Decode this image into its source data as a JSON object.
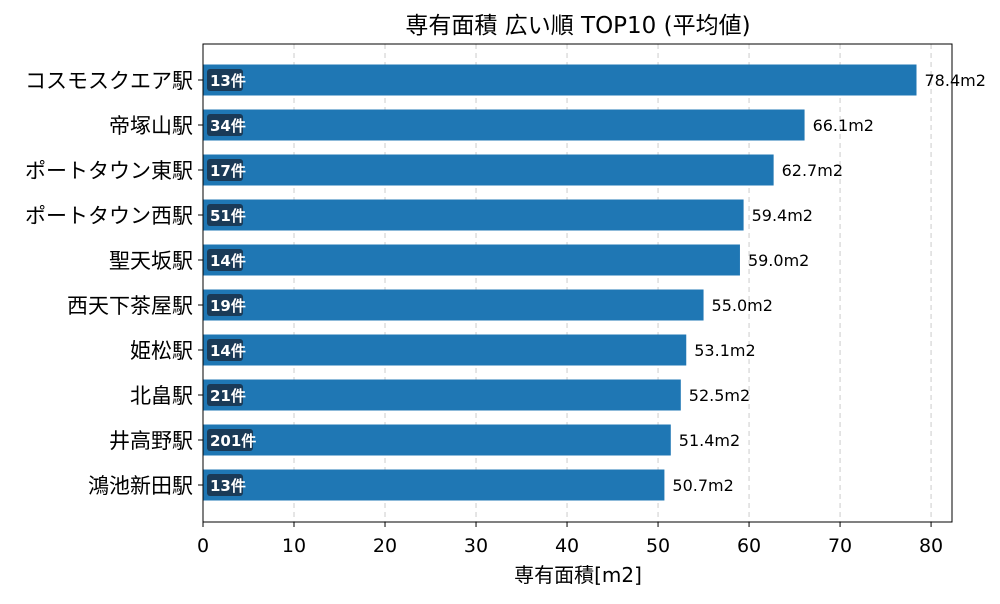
{
  "chart_data": {
    "type": "bar",
    "orientation": "horizontal",
    "title": "専有面積 広い順 TOP10 (平均値)",
    "xlabel": "専有面積[m2]",
    "ylabel": "",
    "xlim": [
      0,
      82.3
    ],
    "xticks": [
      0,
      10,
      20,
      30,
      40,
      50,
      60,
      70,
      80
    ],
    "grid": "vertical-dashed",
    "bar_color": "#1f77b4",
    "badge_color": "#1a3a57",
    "categories": [
      "コスモスクエア駅",
      "帝塚山駅",
      "ポートタウン東駅",
      "ポートタウン西駅",
      "聖天坂駅",
      "西天下茶屋駅",
      "姫松駅",
      "北畠駅",
      "井高野駅",
      "鴻池新田駅"
    ],
    "values": [
      78.4,
      66.1,
      62.7,
      59.4,
      59.0,
      55.0,
      53.1,
      52.5,
      51.4,
      50.7
    ],
    "value_labels": [
      "78.4m2",
      "66.1m2",
      "62.7m2",
      "59.4m2",
      "59.0m2",
      "55.0m2",
      "53.1m2",
      "52.5m2",
      "51.4m2",
      "50.7m2"
    ],
    "count_labels": [
      "13件",
      "34件",
      "17件",
      "51件",
      "14件",
      "19件",
      "14件",
      "21件",
      "201件",
      "13件"
    ]
  }
}
